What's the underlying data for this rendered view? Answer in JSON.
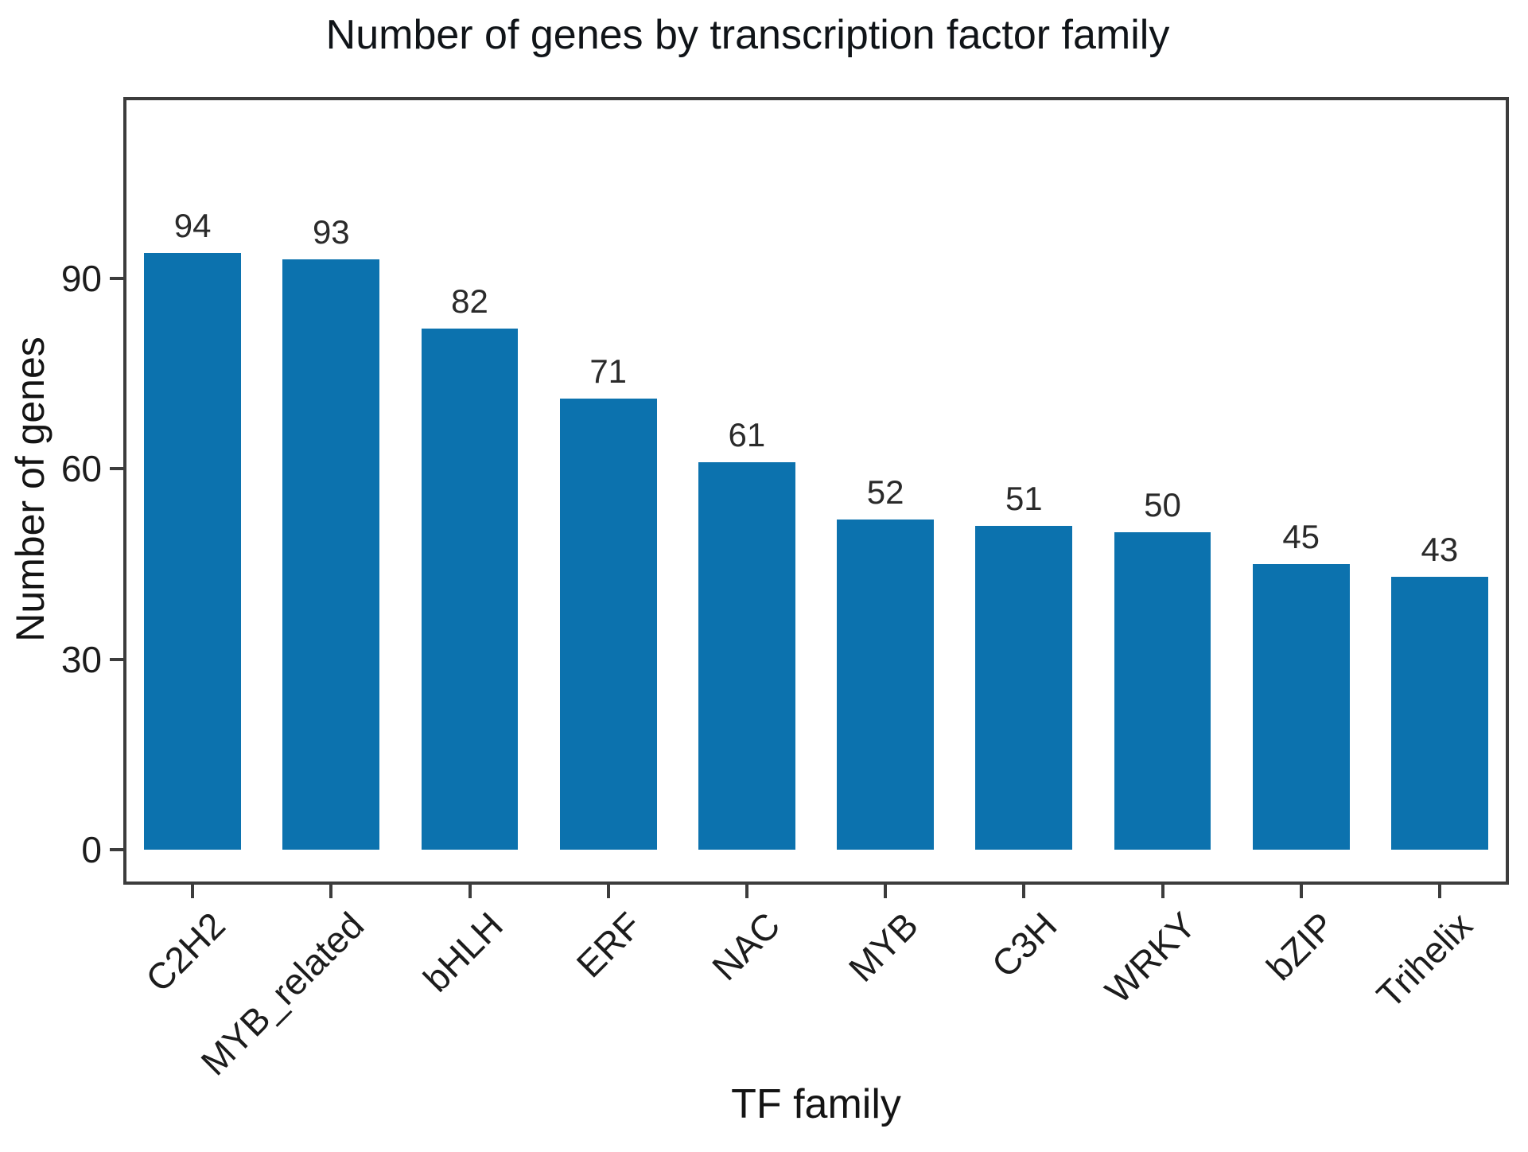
{
  "chart_data": {
    "type": "bar",
    "title": "Number of genes by transcription factor family",
    "xlabel": "TF family",
    "ylabel": "Number of genes",
    "categories": [
      "C2H2",
      "MYB_related",
      "bHLH",
      "ERF",
      "NAC",
      "MYB",
      "C3H",
      "WRKY",
      "bZIP",
      "Trihelix"
    ],
    "values": [
      94,
      93,
      82,
      71,
      61,
      52,
      51,
      50,
      45,
      43
    ],
    "value_labels_shown": true,
    "yticks": [
      0,
      30,
      60,
      90
    ],
    "ylim": [
      -5.5,
      118.5
    ],
    "grid": false,
    "legend": "none",
    "bar_color": "#0c72ae",
    "spine_color": "#3c3c3c",
    "x_tick_rotation_deg": 45
  }
}
